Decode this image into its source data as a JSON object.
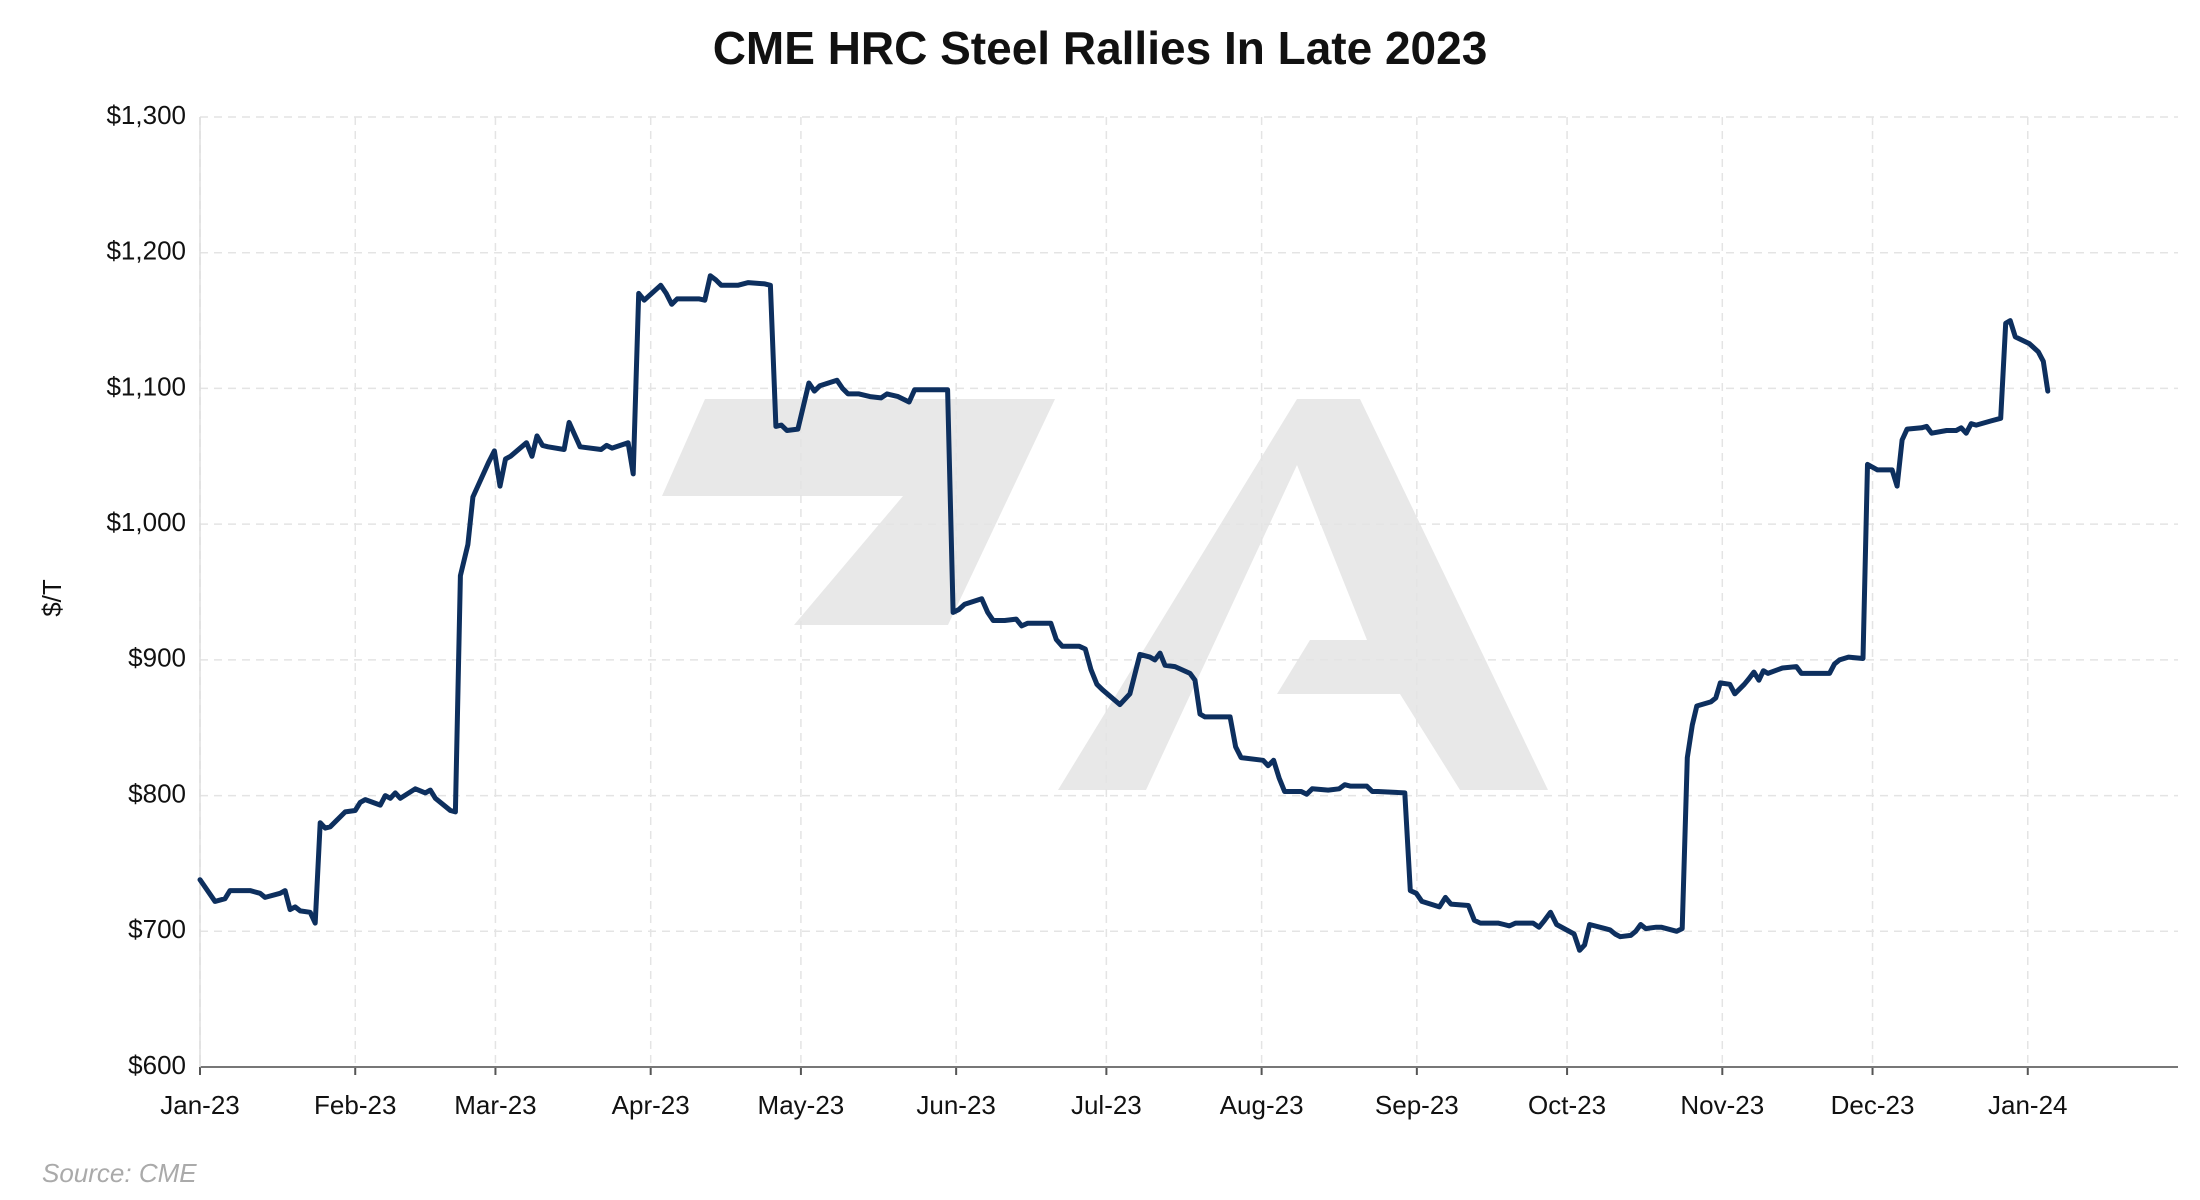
{
  "chart_data": {
    "type": "line",
    "title": "CME HRC Steel Rallies In Late 2023",
    "y_label": "$/T",
    "source": "Source: CME",
    "color": "#0d2f5e",
    "grid": true,
    "xlim": [
      0,
      395
    ],
    "xticks": [
      {
        "value": 0,
        "label": "Jan-23"
      },
      {
        "value": 31,
        "label": "Feb-23"
      },
      {
        "value": 59,
        "label": "Mar-23"
      },
      {
        "value": 90,
        "label": "Apr-23"
      },
      {
        "value": 120,
        "label": "May-23"
      },
      {
        "value": 151,
        "label": "Jun-23"
      },
      {
        "value": 181,
        "label": "Jul-23"
      },
      {
        "value": 212,
        "label": "Aug-23"
      },
      {
        "value": 243,
        "label": "Sep-23"
      },
      {
        "value": 273,
        "label": "Oct-23"
      },
      {
        "value": 304,
        "label": "Nov-23"
      },
      {
        "value": 334,
        "label": "Dec-23"
      },
      {
        "value": 365,
        "label": "Jan-24"
      }
    ],
    "ylim": [
      600,
      1300
    ],
    "yticks": [
      {
        "value": 600,
        "label": "$600"
      },
      {
        "value": 700,
        "label": "$700"
      },
      {
        "value": 800,
        "label": "$800"
      },
      {
        "value": 900,
        "label": "$900"
      },
      {
        "value": 1000,
        "label": "$1,000"
      },
      {
        "value": 1100,
        "label": "$1,100"
      },
      {
        "value": 1200,
        "label": "$1,200"
      },
      {
        "value": 1300,
        "label": "$1,300"
      }
    ],
    "x": [
      0,
      3,
      5,
      6,
      10,
      12,
      13,
      16,
      17,
      18,
      19,
      20,
      22,
      23,
      24,
      25,
      26,
      29,
      31,
      32,
      33,
      36,
      37,
      38,
      39,
      40,
      43,
      45,
      46,
      47,
      50,
      51,
      52,
      53.5,
      54.5,
      57.7,
      58.8,
      59.9,
      61,
      62,
      65.2,
      66.3,
      67.3,
      68.4,
      69.5,
      72.7,
      73.7,
      74.8,
      75.9,
      80.1,
      81.2,
      82.3,
      85.5,
      86.5,
      87.6,
      88.7,
      92,
      93.1,
      94.2,
      95.3,
      99.7,
      100.8,
      101.9,
      103,
      104.1,
      107.4,
      109.5,
      112.8,
      113.9,
      115,
      116.1,
      117.2,
      119.4,
      121.6,
      122.7,
      123.8,
      127.2,
      128.3,
      129.4,
      131.6,
      133.8,
      136,
      137.2,
      139.4,
      141.6,
      142.7,
      149.3,
      150.4,
      151.5,
      152.7,
      156.1,
      157.3,
      158.4,
      160.7,
      163,
      164.1,
      165.3,
      169.9,
      171,
      172.2,
      175.6,
      176.8,
      177.9,
      179.1,
      180.2,
      183.7,
      185.7,
      187.7,
      189.7,
      190.7,
      191.7,
      192.7,
      194.7,
      197.7,
      198.7,
      199.7,
      200.7,
      205.7,
      206.8,
      207.9,
      212.3,
      213.3,
      214.4,
      215.5,
      216.6,
      219.9,
      221,
      222.1,
      225.3,
      227.5,
      228.6,
      229.7,
      233,
      234.1,
      235.2,
      240.6,
      241.7,
      242.9,
      244,
      247.5,
      248.7,
      249.8,
      253.3,
      254.5,
      255.7,
      259.2,
      260.4,
      261.5,
      262.7,
      266.2,
      267.4,
      268.5,
      269.7,
      270.9,
      274.4,
      275.5,
      276.5,
      277.5,
      280.6,
      281.6,
      282.6,
      283.6,
      285.7,
      286.7,
      287.7,
      288.7,
      290.8,
      291.8,
      294.9,
      296,
      297,
      298,
      298.9,
      301.7,
      302.7,
      303.6,
      305.5,
      306.5,
      308.4,
      309.3,
      310.3,
      311.3,
      312.2,
      313.1,
      316,
      318.8,
      319.8,
      325.4,
      326.4,
      327.4,
      329.2,
      332.1,
      333,
      335,
      337.9,
      338.9,
      339.9,
      340.9,
      343.8,
      344.8,
      345.8,
      348.8,
      350.7,
      351.7,
      352.7,
      353.7,
      354.7,
      357.6,
      359.6,
      360.6,
      361.5,
      362.5,
      365.3,
      367.1,
      368.1,
      369
    ],
    "values": [
      738,
      722,
      724,
      730,
      730,
      728,
      725,
      728,
      730,
      716,
      718,
      715,
      714,
      706,
      780,
      776,
      777,
      788,
      789,
      795,
      797,
      793,
      800,
      798,
      802,
      798,
      805,
      802,
      804,
      798,
      789,
      788,
      962,
      985,
      1020,
      1046,
      1054,
      1028,
      1048,
      1050,
      1060,
      1050,
      1065,
      1058,
      1057,
      1055,
      1075,
      1066,
      1057,
      1055,
      1058,
      1056,
      1060,
      1037,
      1170,
      1165,
      1176,
      1170,
      1162,
      1166,
      1166,
      1165,
      1183,
      1180,
      1176,
      1176,
      1178,
      1177,
      1176,
      1072,
      1073,
      1069,
      1070,
      1104,
      1098,
      1102,
      1106,
      1100,
      1096,
      1096,
      1094,
      1093,
      1096,
      1094,
      1090,
      1099,
      1099,
      935,
      937,
      941,
      945,
      935,
      929,
      929,
      930,
      925,
      927,
      927,
      915,
      910,
      910,
      908,
      893,
      882,
      878,
      867,
      875,
      904,
      902,
      900,
      905,
      896,
      895,
      890,
      885,
      860,
      858,
      858,
      836,
      828,
      826,
      822,
      826,
      813,
      803,
      803,
      801,
      805,
      804,
      805,
      808,
      807,
      807,
      803,
      803,
      802,
      730,
      728,
      722,
      718,
      725,
      720,
      719,
      708,
      706,
      706,
      705,
      704,
      706,
      706,
      703,
      708,
      714,
      705,
      698,
      686,
      690,
      705,
      702,
      701,
      698,
      696,
      697,
      700,
      705,
      702,
      703,
      703,
      700,
      702,
      828,
      852,
      866,
      869,
      872,
      883,
      882,
      875,
      882,
      886,
      891,
      885,
      892,
      890,
      894,
      895,
      890,
      890,
      897,
      900,
      902,
      901,
      1044,
      1040,
      1040,
      1028,
      1062,
      1070,
      1071,
      1072,
      1067,
      1069,
      1069,
      1071,
      1067,
      1074,
      1073,
      1076,
      1078,
      1148,
      1150,
      1138,
      1133,
      1127,
      1120,
      1098
    ]
  }
}
